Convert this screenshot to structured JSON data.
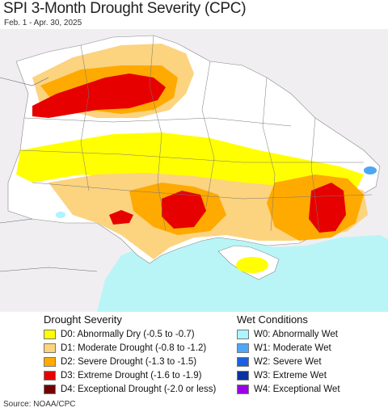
{
  "title": "SPI 3-Month Drought Severity (CPC)",
  "subtitle": "Feb. 1 - Apr. 30, 2025",
  "legend": {
    "drought_heading": "Drought Severity",
    "wet_heading": "Wet Conditions",
    "drought": [
      {
        "label": "D0: Abnormally Dry (-0.5 to -0.7)",
        "color": "#ffff00"
      },
      {
        "label": "D1: Moderate Drought (-0.8 to -1.2)",
        "color": "#fcd37f"
      },
      {
        "label": "D2: Severe Drought (-1.3 to -1.5)",
        "color": "#ffaa00"
      },
      {
        "label": "D3: Extreme Drought (-1.6 to -1.9)",
        "color": "#e60000"
      },
      {
        "label": "D4: Exceptional Drought (-2.0 or less)",
        "color": "#730000"
      }
    ],
    "wet": [
      {
        "label": "W0: Abnormally Wet",
        "color": "#aaf5ff"
      },
      {
        "label": "W1: Moderate Wet",
        "color": "#4ea7f5"
      },
      {
        "label": "W2: Severe Wet",
        "color": "#1d5fde"
      },
      {
        "label": "W3: Extreme Wet",
        "color": "#0a32a0"
      },
      {
        "label": "W4: Exceptional Wet",
        "color": "#9b00e6"
      }
    ]
  },
  "source": "Source: NOAA/CPC",
  "colors": {
    "outside": "#f0eef1",
    "sea": "#b9f5f7",
    "no_anomaly": "#ffffff"
  }
}
